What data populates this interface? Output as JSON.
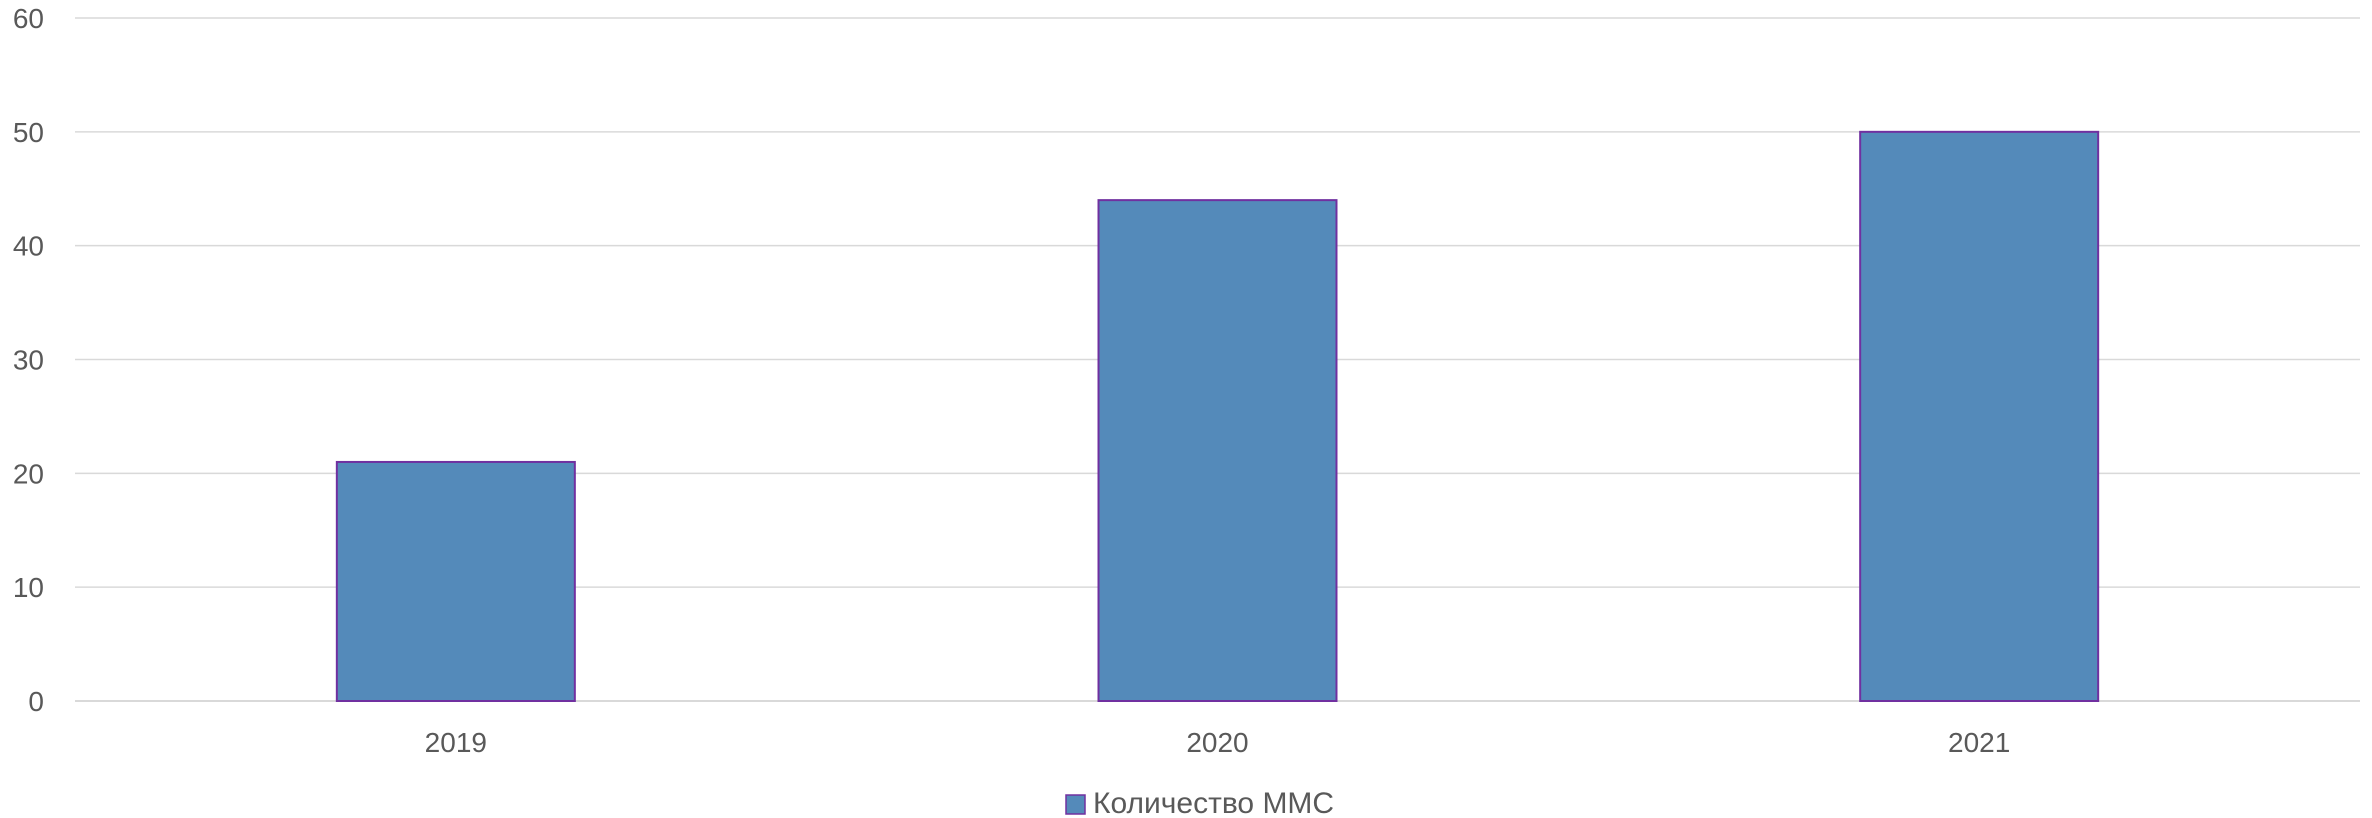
{
  "chart_data": {
    "type": "bar",
    "categories": [
      "2019",
      "2020",
      "2021"
    ],
    "series": [
      {
        "name": "Количество ММС",
        "values": [
          21,
          44,
          50
        ]
      }
    ],
    "ylim": [
      0,
      60
    ],
    "yticks": [
      0,
      10,
      20,
      30,
      40,
      50,
      60
    ],
    "grid": true,
    "legend_position": "bottom",
    "colors": {
      "bar_fill": "#548ABA",
      "bar_stroke": "#7030A0",
      "grid": "#D9D9D9",
      "axis": "#D9D9D9",
      "text": "#595959"
    }
  }
}
